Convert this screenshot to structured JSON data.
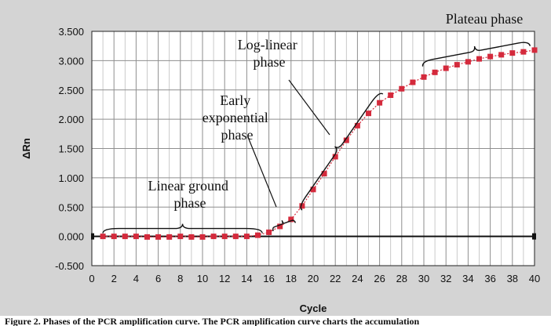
{
  "chart_data": {
    "type": "line",
    "title": "",
    "xlabel": "Cycle",
    "ylabel": "ΔRn",
    "xlim": [
      0,
      40
    ],
    "ylim": [
      -0.5,
      3.5
    ],
    "x_ticks": [
      "0",
      "2",
      "4",
      "6",
      "8",
      "10",
      "12",
      "14",
      "16",
      "18",
      "20",
      "22",
      "24",
      "26",
      "28",
      "30",
      "32",
      "34",
      "36",
      "38",
      "40"
    ],
    "y_ticks": [
      "-0.500",
      "0.000",
      "0.500",
      "1.000",
      "1.500",
      "2.000",
      "2.500",
      "3.000",
      "3.500"
    ],
    "x_tick_values": [
      0,
      2,
      4,
      6,
      8,
      10,
      12,
      14,
      16,
      18,
      20,
      22,
      24,
      26,
      28,
      30,
      32,
      34,
      36,
      38,
      40
    ],
    "y_tick_values": [
      -0.5,
      0,
      0.5,
      1,
      1.5,
      2,
      2.5,
      3,
      3.5
    ],
    "grid": true,
    "series": [
      {
        "name": "ΔRn",
        "color": "#d42a3c",
        "x": [
          1,
          2,
          3,
          4,
          5,
          6,
          7,
          8,
          9,
          10,
          11,
          12,
          13,
          14,
          15,
          16,
          17,
          18,
          19,
          20,
          21,
          22,
          23,
          24,
          25,
          26,
          27,
          28,
          29,
          30,
          31,
          32,
          33,
          34,
          35,
          36,
          37,
          38,
          39,
          40
        ],
        "values": [
          0.0,
          0.0,
          0.0,
          0.0,
          -0.01,
          -0.01,
          -0.01,
          0.0,
          -0.01,
          -0.01,
          0.0,
          0.0,
          0.0,
          0.0,
          0.02,
          0.07,
          0.17,
          0.29,
          0.52,
          0.8,
          1.07,
          1.36,
          1.64,
          1.89,
          2.1,
          2.28,
          2.41,
          2.52,
          2.63,
          2.72,
          2.8,
          2.87,
          2.93,
          2.98,
          3.03,
          3.07,
          3.1,
          3.13,
          3.15,
          3.18
        ]
      }
    ],
    "annotations": [
      {
        "lines": [
          "Plateau phase"
        ]
      },
      {
        "lines": [
          "Log-linear",
          "phase"
        ]
      },
      {
        "lines": [
          "Early",
          "exponential",
          "phase"
        ]
      },
      {
        "lines": [
          "Linear ground",
          "phase"
        ]
      }
    ]
  },
  "caption": "Figure 2. Phases of the PCR amplification curve. The PCR amplification curve charts the accumulation"
}
